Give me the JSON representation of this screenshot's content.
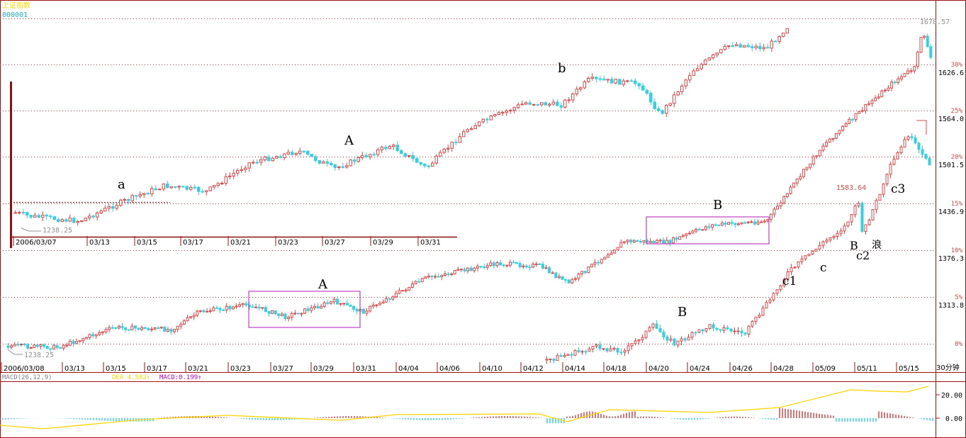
{
  "header": {
    "index_name": "上证指数",
    "code": "000001"
  },
  "axis": {
    "right_percent_ticks": [
      {
        "label": "30%",
        "value": 1626.6
      },
      {
        "label": "25%",
        "value": 1564.0
      },
      {
        "label": "20%",
        "value": 1501.5
      },
      {
        "label": "15%",
        "value": 1436.9
      },
      {
        "label": "10%",
        "value": 1376.3
      },
      {
        "label": "5%",
        "value": 1313.8
      },
      {
        "label": "0%",
        "value": null
      }
    ],
    "period_label": "30分钟",
    "macd_ticks": [
      "20.00",
      "0.00"
    ]
  },
  "macd_header": {
    "params": "MACD(26,12,9)",
    "dea": "DEA 4.582↑",
    "macd": "MACD:0.199↑"
  },
  "colors": {
    "up": "#d94848",
    "down": "#33d0e0",
    "grid": "#b03030",
    "frame": "#a01010",
    "box": "#c040c0",
    "dea_line": "#ffd400",
    "header_yellow": "#ffd400",
    "code_cyan": "#20b0c0"
  },
  "chart_data": [
    {
      "type": "candlestick",
      "name": "inset",
      "x_ticks": [
        "2006/03/07",
        "03/13",
        "03/15",
        "03/17",
        "03/21",
        "03/23",
        "03/27",
        "03/29",
        "03/31"
      ],
      "low_label": "1238.25",
      "annotations": [
        "a",
        "A",
        "b"
      ]
    },
    {
      "type": "candlestick",
      "name": "main",
      "x_ticks": [
        "2006/03/08",
        "03/13",
        "03/15",
        "03/17",
        "03/21",
        "03/23",
        "03/27",
        "03/29",
        "03/31",
        "04/04",
        "04/06",
        "04/10",
        "04/12",
        "04/14",
        "04/18",
        "04/20",
        "04/24",
        "04/26",
        "04/28",
        "05/09",
        "05/11",
        "05/15"
      ],
      "low_label": "1238.25",
      "high_label": "1678.57",
      "marker_label": "1583.64",
      "annotations": [
        "A",
        "B",
        "B",
        "c1",
        "c",
        "c2",
        "c3",
        "B",
        "浪"
      ]
    }
  ]
}
